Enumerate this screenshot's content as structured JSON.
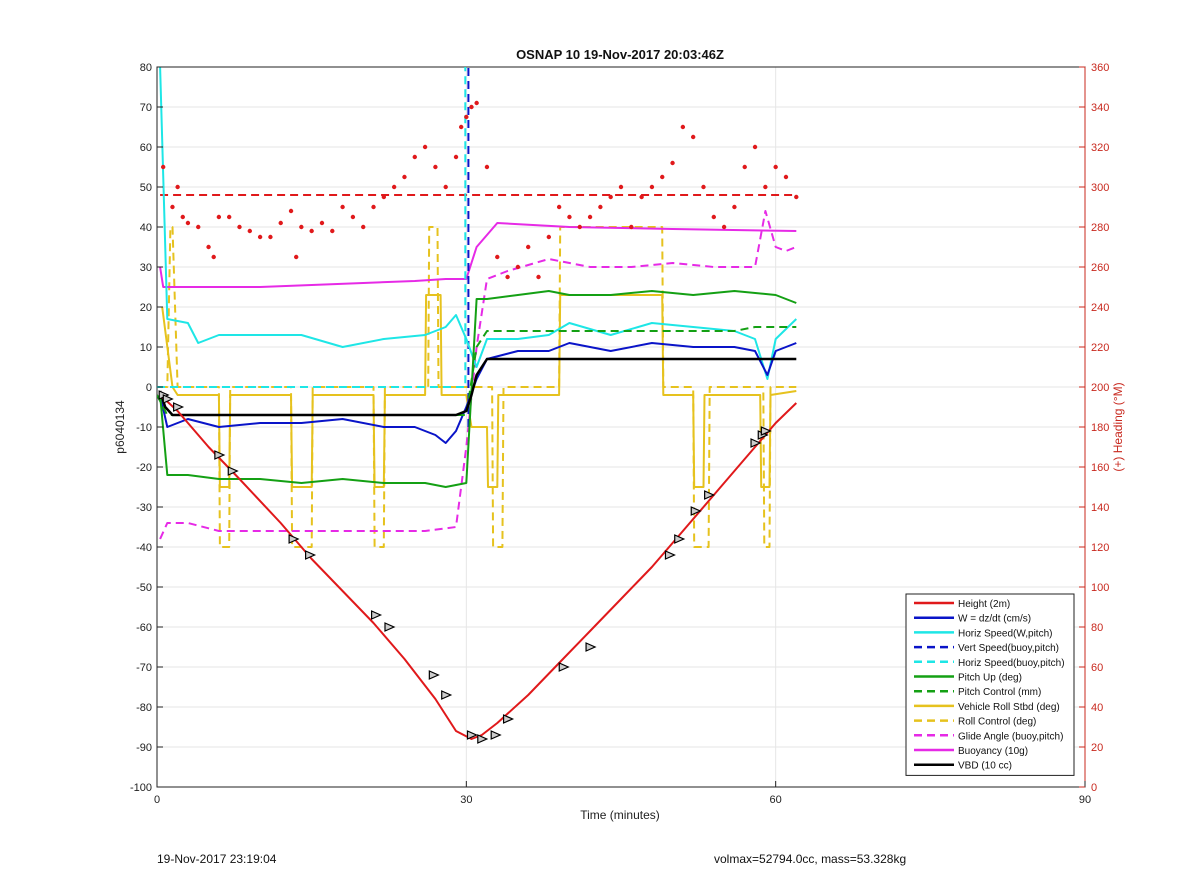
{
  "chart_data": {
    "type": "line",
    "title": "OSNAP 10 19-Nov-2017 20:03:46Z",
    "xlabel": "Time (minutes)",
    "ylabel": "p6040134",
    "y2label": "(+) Heading (°M)",
    "xlim": [
      0,
      90
    ],
    "ylim": [
      -100,
      80
    ],
    "y2lim": [
      0,
      360
    ],
    "xticks": [
      0,
      30,
      60,
      90
    ],
    "yticks": [
      -100,
      -90,
      -80,
      -70,
      -60,
      -50,
      -40,
      -30,
      -20,
      -10,
      0,
      10,
      20,
      30,
      40,
      50,
      60,
      70,
      80
    ],
    "y2ticks": [
      0,
      20,
      40,
      60,
      80,
      100,
      120,
      140,
      160,
      180,
      200,
      220,
      240,
      260,
      280,
      300,
      320,
      340,
      360
    ],
    "grid": true,
    "legend_position": "bottom-right",
    "colors": {
      "red": "#e0191b",
      "blue": "#0a14c8",
      "cyan": "#1ee6e6",
      "green": "#14a014",
      "yellow": "#e6c21e",
      "magenta": "#e62ae6",
      "black": "#000000",
      "axis_right": "#c8281e"
    },
    "series": [
      {
        "name": "Height (2m)",
        "color": "red",
        "style": "solid",
        "x": [
          0.3,
          2,
          5,
          8,
          12,
          15,
          18,
          21,
          24,
          27,
          29,
          30.5,
          31.5,
          33,
          36,
          39,
          42,
          45,
          48,
          51,
          54,
          57,
          60,
          62
        ],
        "y": [
          -2,
          -6,
          -15,
          -23,
          -34,
          -43,
          -51,
          -59,
          -68,
          -78,
          -86,
          -88,
          -87,
          -84,
          -77,
          -69,
          -61,
          -53,
          -45,
          -36,
          -27,
          -18,
          -9,
          -4
        ]
      },
      {
        "name": "W = dz/dt (cm/s)",
        "color": "blue",
        "style": "solid",
        "x": [
          0.3,
          1,
          3,
          6,
          10,
          14,
          18,
          22,
          25,
          27,
          28,
          29,
          30,
          31,
          32,
          35,
          38,
          40,
          44,
          48,
          52,
          56,
          58,
          59.2,
          60,
          62
        ],
        "y": [
          -2,
          -10,
          -8,
          -10,
          -9,
          -9,
          -8,
          -10,
          -10,
          -12,
          -14,
          -11,
          -5,
          2,
          7,
          9,
          9,
          11,
          9,
          11,
          10,
          10,
          9,
          3,
          9,
          11
        ]
      },
      {
        "name": "Horiz Speed(W,pitch)",
        "color": "cyan",
        "style": "solid",
        "x": [
          0.3,
          1,
          3,
          4,
          6,
          10,
          14,
          18,
          22,
          26,
          28,
          29,
          30,
          31,
          32,
          35,
          38,
          40,
          44,
          48,
          52,
          56,
          58,
          59.2,
          60,
          62
        ],
        "y": [
          80,
          17,
          16,
          11,
          13,
          13,
          13,
          10,
          12,
          13,
          15,
          18,
          12,
          5,
          12,
          12,
          13,
          16,
          13,
          16,
          15,
          14,
          12,
          2,
          12,
          17
        ]
      },
      {
        "name": "Vert Speed(buoy,pitch)",
        "color": "blue",
        "style": "dashed",
        "x": [
          30.2,
          30.2
        ],
        "y": [
          -10,
          80
        ]
      },
      {
        "name": "Horiz Speed(buoy,pitch)",
        "color": "cyan",
        "style": "dashed",
        "x": [
          0,
          29.5,
          29.9,
          29.9
        ],
        "y": [
          0,
          0,
          0,
          80
        ]
      },
      {
        "name": "Pitch Up (deg)",
        "color": "green",
        "style": "solid",
        "x": [
          0.3,
          1,
          3,
          6,
          10,
          14,
          18,
          22,
          26,
          28,
          30,
          31,
          32,
          35,
          38,
          40,
          44,
          48,
          52,
          56,
          60,
          62
        ],
        "y": [
          -2,
          -22,
          -22,
          -23,
          -23,
          -24,
          -23,
          -24,
          -24,
          -25,
          -24,
          22,
          22,
          23,
          24,
          23,
          23,
          24,
          23,
          24,
          23,
          21
        ]
      },
      {
        "name": "Pitch Control (mm)",
        "color": "green",
        "style": "dashed",
        "x": [
          0,
          1,
          30,
          31,
          32,
          40,
          56,
          58,
          62
        ],
        "y": [
          -2,
          -7,
          -7,
          10,
          14,
          14,
          14,
          15,
          15
        ]
      },
      {
        "name": "Vehicle Roll Stbd (deg)",
        "color": "yellow",
        "style": "solid",
        "x": [
          0.5,
          1.5,
          2,
          4,
          6,
          6.1,
          7,
          7.1,
          9,
          13,
          13.1,
          15,
          15.1,
          21,
          21.1,
          22,
          22.1,
          26,
          26.1,
          27.5,
          27.6,
          30,
          30.5,
          32,
          32.1,
          33,
          33.1,
          39,
          39.1,
          49,
          49.1,
          52,
          52.1,
          53,
          53.1,
          58.5,
          58.6,
          59.4,
          59.5,
          62
        ],
        "y": [
          20,
          0,
          -2,
          -2,
          -2,
          -25,
          -25,
          -2,
          -2,
          -2,
          -25,
          -25,
          -2,
          -2,
          -25,
          -25,
          -2,
          -2,
          23,
          23,
          -2,
          -2,
          -10,
          -10,
          -25,
          -25,
          -2,
          -2,
          23,
          23,
          -2,
          -2,
          -25,
          -25,
          -2,
          -2,
          -25,
          -25,
          -2,
          -1
        ]
      },
      {
        "name": "Roll Control (deg)",
        "color": "yellow",
        "style": "dashed",
        "x": [
          0.3,
          1,
          1.3,
          1.5,
          2,
          6,
          6.1,
          7,
          7.1,
          13,
          13.1,
          15,
          15.1,
          21,
          21.1,
          22,
          22.1,
          26.3,
          26.4,
          27.2,
          27.3,
          30,
          30.8,
          32.5,
          32.6,
          33.5,
          33.6,
          39,
          39.1,
          49,
          49.1,
          52,
          52.1,
          53.5,
          53.6,
          58.8,
          58.9,
          59.4,
          59.5,
          62
        ],
        "y": [
          0,
          0,
          40,
          40,
          0,
          0,
          -40,
          -40,
          0,
          0,
          -40,
          -40,
          0,
          0,
          -40,
          -40,
          0,
          0,
          40,
          40,
          0,
          0,
          0,
          0,
          -40,
          -40,
          0,
          0,
          40,
          40,
          0,
          0,
          -40,
          -40,
          0,
          0,
          -40,
          -40,
          0,
          0
        ]
      },
      {
        "name": "Glide Angle (buoy,pitch)",
        "color": "magenta",
        "style": "dashed",
        "x": [
          0.3,
          1,
          3,
          6,
          10,
          14,
          18,
          22,
          26,
          29,
          30,
          31,
          32,
          34,
          38,
          42,
          46,
          50,
          54,
          56,
          58,
          59,
          60,
          61,
          62
        ],
        "y": [
          -38,
          -34,
          -34,
          -36,
          -36,
          -36,
          -36,
          -36,
          -36,
          -35,
          -15,
          10,
          27,
          29,
          32,
          30,
          30,
          31,
          30,
          30,
          30,
          44,
          35,
          34,
          35
        ]
      },
      {
        "name": "Buoyancy (10g)",
        "color": "magenta",
        "style": "solid",
        "x": [
          0.3,
          0.6,
          5,
          10,
          15,
          20,
          25,
          28,
          30,
          31,
          33,
          40,
          50,
          62
        ],
        "y": [
          30,
          25,
          25,
          25,
          25.5,
          26,
          26.5,
          27,
          27,
          35,
          41,
          40,
          39.5,
          39
        ]
      },
      {
        "name": "VBD (10 cc)",
        "color": "black",
        "style": "solid",
        "x": [
          0.3,
          0.8,
          1.5,
          10,
          20,
          29,
          30,
          30.5,
          31,
          32,
          35,
          45,
          55,
          62
        ],
        "y": [
          -1,
          -5,
          -7,
          -7,
          -7,
          -7,
          -6,
          -2,
          3,
          7,
          7,
          7,
          7,
          7
        ]
      }
    ],
    "heading": {
      "name": "Heading",
      "axis": "right",
      "color": "red",
      "style": "dotted",
      "x": [
        0.6,
        1.5,
        2,
        2.5,
        3,
        4,
        5,
        5.5,
        6,
        7,
        8,
        9,
        10,
        11,
        12,
        13,
        13.5,
        14,
        15,
        16,
        17,
        18,
        19,
        20,
        21,
        22,
        23,
        24,
        25,
        26,
        27,
        28,
        29,
        29.5,
        30,
        30.5,
        31,
        32,
        33,
        34,
        35,
        36,
        37,
        38,
        39,
        40,
        41,
        42,
        43,
        44,
        45,
        46,
        47,
        48,
        49,
        50,
        51,
        52,
        53,
        54,
        55,
        56,
        57,
        58,
        59,
        60,
        61,
        62
      ],
      "y": [
        310,
        290,
        300,
        285,
        282,
        280,
        270,
        265,
        285,
        285,
        280,
        278,
        275,
        275,
        282,
        288,
        265,
        280,
        278,
        282,
        278,
        290,
        285,
        280,
        290,
        295,
        300,
        305,
        315,
        320,
        310,
        300,
        315,
        330,
        335,
        340,
        342,
        310,
        265,
        255,
        260,
        270,
        255,
        275,
        290,
        285,
        280,
        285,
        290,
        295,
        300,
        280,
        295,
        300,
        305,
        312,
        330,
        325,
        300,
        285,
        280,
        290,
        310,
        320,
        300,
        310,
        305,
        295
      ]
    },
    "heading_mean": {
      "name": "Heading mean",
      "axis": "right",
      "color": "red",
      "style": "dashed",
      "y": 296
    },
    "arrows": {
      "color": "#000000",
      "x": [
        0.6,
        1.0,
        2.0,
        6.0,
        7.3,
        13.2,
        14.8,
        21.2,
        22.5,
        26.8,
        28.0,
        30.5,
        31.5,
        32.8,
        34.0,
        39.4,
        42.0,
        49.7,
        50.6,
        52.2,
        53.5,
        58.0,
        58.7,
        59.0
      ],
      "y": [
        -2,
        -3,
        -5,
        -17,
        -21,
        -38,
        -42,
        -57,
        -60,
        -72,
        -77,
        -87,
        -88,
        -87,
        -83,
        -70,
        -65,
        -42,
        -38,
        -31,
        -27,
        -14,
        -12,
        -11
      ]
    },
    "legend": [
      "Height (2m)",
      "W = dz/dt (cm/s)",
      "Horiz Speed(W,pitch)",
      "Vert Speed(buoy,pitch)",
      "Horiz Speed(buoy,pitch)",
      "Pitch Up (deg)",
      "Pitch Control (mm)",
      "Vehicle Roll Stbd (deg)",
      "Roll Control (deg)",
      "Glide Angle (buoy,pitch)",
      "Buoyancy (10g)",
      "VBD (10 cc)"
    ]
  },
  "footer": {
    "left": "19-Nov-2017 23:19:04",
    "right": "volmax=52794.0cc, mass=53.328kg"
  }
}
